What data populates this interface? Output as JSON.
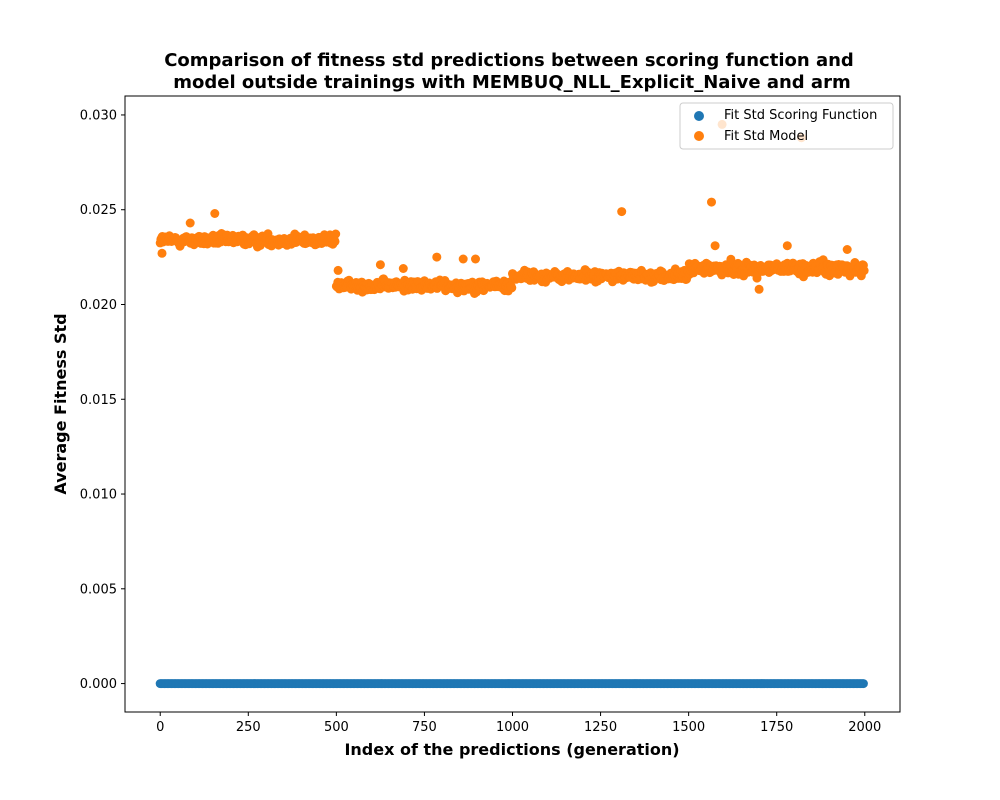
{
  "chart_data": {
    "type": "scatter",
    "title_line1": "Comparison of fitness std predictions between scoring function and",
    "title_line2": "model outside trainings with MEMBUQ_NLL_Explicit_Naive and arm",
    "xlabel": "Index of the predictions (generation)",
    "ylabel": "Average Fitness Std",
    "xlim": [
      -100,
      2100
    ],
    "ylim": [
      -0.0015,
      0.031
    ],
    "xticks": [
      0,
      250,
      500,
      750,
      1000,
      1250,
      1500,
      1750,
      2000
    ],
    "yticks": [
      0.0,
      0.005,
      0.01,
      0.015,
      0.02,
      0.025,
      0.03
    ],
    "ytick_labels": [
      "0.000",
      "0.005",
      "0.010",
      "0.015",
      "0.020",
      "0.025",
      "0.030"
    ],
    "legend_position": "top-right",
    "series": [
      {
        "name": "Fit Std Scoring Function",
        "color": "#1f77b4",
        "description": "constant 0.000 for every generation 0–1999",
        "x_range": [
          0,
          1999
        ],
        "y_value": 0.0
      },
      {
        "name": "Fit Std Model",
        "color": "#ff7f0e",
        "segments": [
          {
            "x_range": [
              0,
              499
            ],
            "y_center": 0.0234,
            "y_spread": 0.0006
          },
          {
            "x_range": [
              500,
              999
            ],
            "y_center": 0.021,
            "y_spread": 0.0006
          },
          {
            "x_range": [
              1000,
              1499
            ],
            "y_center": 0.0215,
            "y_spread": 0.0006
          },
          {
            "x_range": [
              1500,
              1999
            ],
            "y_center": 0.0219,
            "y_spread": 0.0007
          }
        ],
        "outliers": [
          {
            "x": 5,
            "y": 0.0227
          },
          {
            "x": 85,
            "y": 0.0243
          },
          {
            "x": 155,
            "y": 0.0248
          },
          {
            "x": 505,
            "y": 0.0218
          },
          {
            "x": 625,
            "y": 0.0221
          },
          {
            "x": 690,
            "y": 0.0219
          },
          {
            "x": 785,
            "y": 0.0225
          },
          {
            "x": 860,
            "y": 0.0224
          },
          {
            "x": 895,
            "y": 0.0224
          },
          {
            "x": 1310,
            "y": 0.0249
          },
          {
            "x": 1565,
            "y": 0.0254
          },
          {
            "x": 1575,
            "y": 0.0231
          },
          {
            "x": 1595,
            "y": 0.0295
          },
          {
            "x": 1700,
            "y": 0.0208
          },
          {
            "x": 1780,
            "y": 0.0231
          },
          {
            "x": 1820,
            "y": 0.0288
          },
          {
            "x": 1950,
            "y": 0.0229
          }
        ]
      }
    ]
  }
}
